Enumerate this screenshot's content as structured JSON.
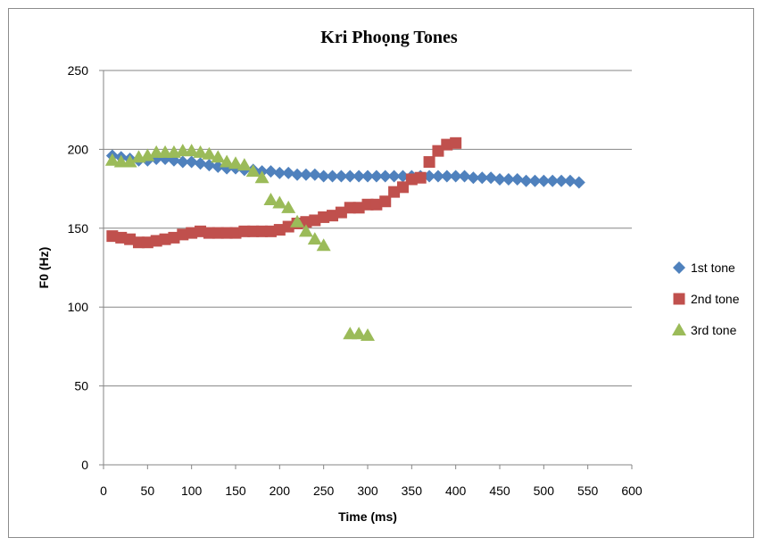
{
  "chart_data": {
    "type": "scatter",
    "title": "Kri Phoọng Tones",
    "xlabel": "Time (ms)",
    "ylabel": "F0 (Hz)",
    "xlim": [
      0,
      600
    ],
    "ylim": [
      0,
      250
    ],
    "x_ticks": [
      "0",
      "50",
      "100",
      "150",
      "200",
      "250",
      "300",
      "350",
      "400",
      "450",
      "500",
      "550",
      "600"
    ],
    "y_ticks": [
      "0",
      "50",
      "100",
      "150",
      "200",
      "250"
    ],
    "grid": "horizontal",
    "legend_position": "right",
    "series": [
      {
        "name": "1st tone",
        "marker": "diamond",
        "color": "#4f81bd",
        "points": [
          [
            10,
            196
          ],
          [
            20,
            195
          ],
          [
            30,
            194
          ],
          [
            40,
            193
          ],
          [
            50,
            193
          ],
          [
            60,
            194
          ],
          [
            70,
            194
          ],
          [
            80,
            193
          ],
          [
            90,
            192
          ],
          [
            100,
            192
          ],
          [
            110,
            191
          ],
          [
            120,
            190
          ],
          [
            130,
            189
          ],
          [
            140,
            188
          ],
          [
            150,
            188
          ],
          [
            160,
            187
          ],
          [
            170,
            187
          ],
          [
            180,
            186
          ],
          [
            190,
            186
          ],
          [
            200,
            185
          ],
          [
            210,
            185
          ],
          [
            220,
            184
          ],
          [
            230,
            184
          ],
          [
            240,
            184
          ],
          [
            250,
            183
          ],
          [
            260,
            183
          ],
          [
            270,
            183
          ],
          [
            280,
            183
          ],
          [
            290,
            183
          ],
          [
            300,
            183
          ],
          [
            310,
            183
          ],
          [
            320,
            183
          ],
          [
            330,
            183
          ],
          [
            340,
            183
          ],
          [
            350,
            183
          ],
          [
            360,
            183
          ],
          [
            370,
            183
          ],
          [
            380,
            183
          ],
          [
            390,
            183
          ],
          [
            400,
            183
          ],
          [
            410,
            183
          ],
          [
            420,
            182
          ],
          [
            430,
            182
          ],
          [
            440,
            182
          ],
          [
            450,
            181
          ],
          [
            460,
            181
          ],
          [
            470,
            181
          ],
          [
            480,
            180
          ],
          [
            490,
            180
          ],
          [
            500,
            180
          ],
          [
            510,
            180
          ],
          [
            520,
            180
          ],
          [
            530,
            180
          ],
          [
            540,
            179
          ]
        ]
      },
      {
        "name": "2nd tone",
        "marker": "square",
        "color": "#c0504d",
        "points": [
          [
            10,
            145
          ],
          [
            20,
            144
          ],
          [
            30,
            143
          ],
          [
            40,
            141
          ],
          [
            50,
            141
          ],
          [
            60,
            142
          ],
          [
            70,
            143
          ],
          [
            80,
            144
          ],
          [
            90,
            146
          ],
          [
            100,
            147
          ],
          [
            110,
            148
          ],
          [
            120,
            147
          ],
          [
            130,
            147
          ],
          [
            140,
            147
          ],
          [
            150,
            147
          ],
          [
            160,
            148
          ],
          [
            170,
            148
          ],
          [
            180,
            148
          ],
          [
            190,
            148
          ],
          [
            200,
            149
          ],
          [
            210,
            151
          ],
          [
            220,
            153
          ],
          [
            230,
            154
          ],
          [
            240,
            155
          ],
          [
            250,
            157
          ],
          [
            260,
            158
          ],
          [
            270,
            160
          ],
          [
            280,
            163
          ],
          [
            290,
            163
          ],
          [
            300,
            165
          ],
          [
            310,
            165
          ],
          [
            320,
            167
          ],
          [
            330,
            173
          ],
          [
            340,
            176
          ],
          [
            350,
            181
          ],
          [
            360,
            182
          ],
          [
            370,
            192
          ],
          [
            380,
            199
          ],
          [
            390,
            203
          ],
          [
            400,
            204
          ]
        ]
      },
      {
        "name": "3rd tone",
        "marker": "triangle",
        "color": "#9bbb59",
        "points": [
          [
            10,
            193
          ],
          [
            20,
            192
          ],
          [
            30,
            192
          ],
          [
            40,
            195
          ],
          [
            50,
            196
          ],
          [
            60,
            198
          ],
          [
            70,
            198
          ],
          [
            80,
            198
          ],
          [
            90,
            199
          ],
          [
            100,
            199
          ],
          [
            110,
            198
          ],
          [
            120,
            197
          ],
          [
            130,
            195
          ],
          [
            140,
            192
          ],
          [
            150,
            191
          ],
          [
            160,
            190
          ],
          [
            170,
            186
          ],
          [
            180,
            182
          ],
          [
            190,
            168
          ],
          [
            200,
            166
          ],
          [
            210,
            163
          ],
          [
            220,
            154
          ],
          [
            230,
            148
          ],
          [
            240,
            143
          ],
          [
            250,
            139
          ],
          [
            280,
            83
          ],
          [
            290,
            83
          ],
          [
            300,
            82
          ]
        ]
      }
    ]
  }
}
